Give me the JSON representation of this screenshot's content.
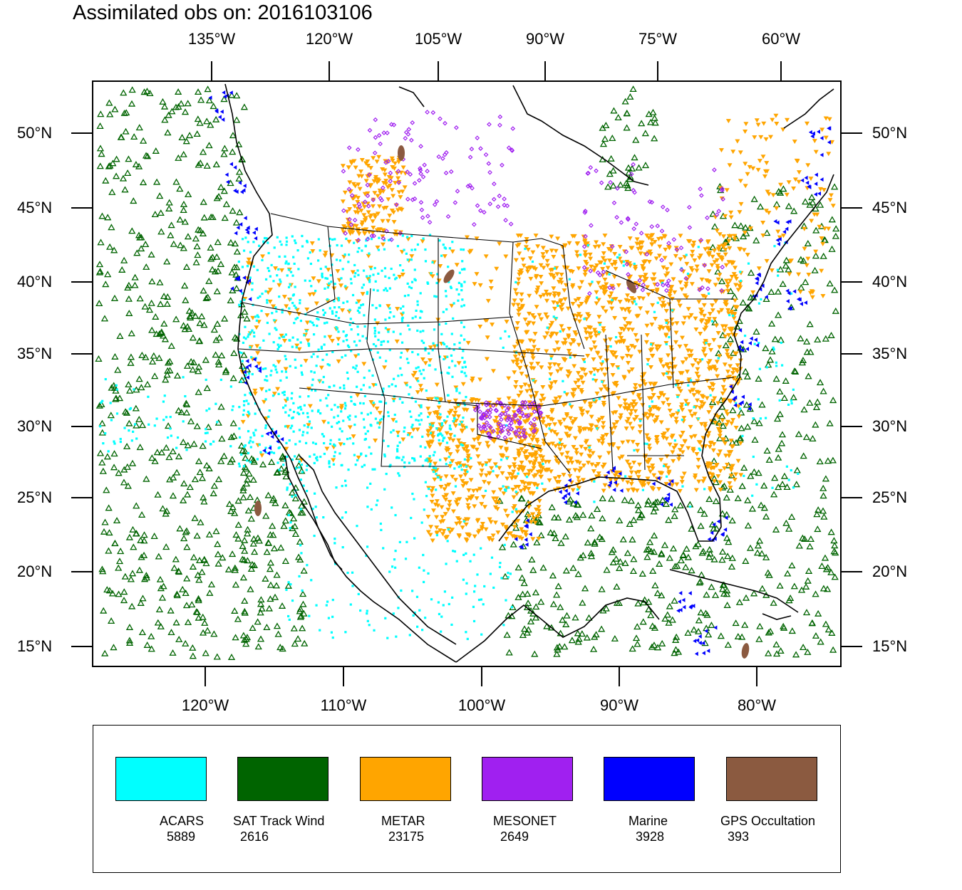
{
  "title": "Assimilated obs on: 2016103106",
  "top_axis_labels": [
    "135°W",
    "120°W",
    "105°W",
    "90°W",
    "75°W",
    "60°W"
  ],
  "bottom_axis_labels": [
    "120°W",
    "110°W",
    "100°W",
    "90°W",
    "80°W"
  ],
  "lat_labels": [
    "50°N",
    "45°N",
    "40°N",
    "35°N",
    "30°N",
    "25°N",
    "20°N",
    "15°N"
  ],
  "legend": [
    {
      "label": "ACARS",
      "count": "5889",
      "color": "#00ffff"
    },
    {
      "label": "SAT Track Wind",
      "count": "2616",
      "color": "#006400"
    },
    {
      "label": "METAR",
      "count": "23175",
      "color": "#ffa500"
    },
    {
      "label": "MESONET",
      "count": "2649",
      "color": "#a020f0"
    },
    {
      "label": "Marine",
      "count": "3928",
      "color": "#0000ff"
    },
    {
      "label": "GPS Occultation",
      "count": "393",
      "color": "#8b5a40"
    }
  ]
}
